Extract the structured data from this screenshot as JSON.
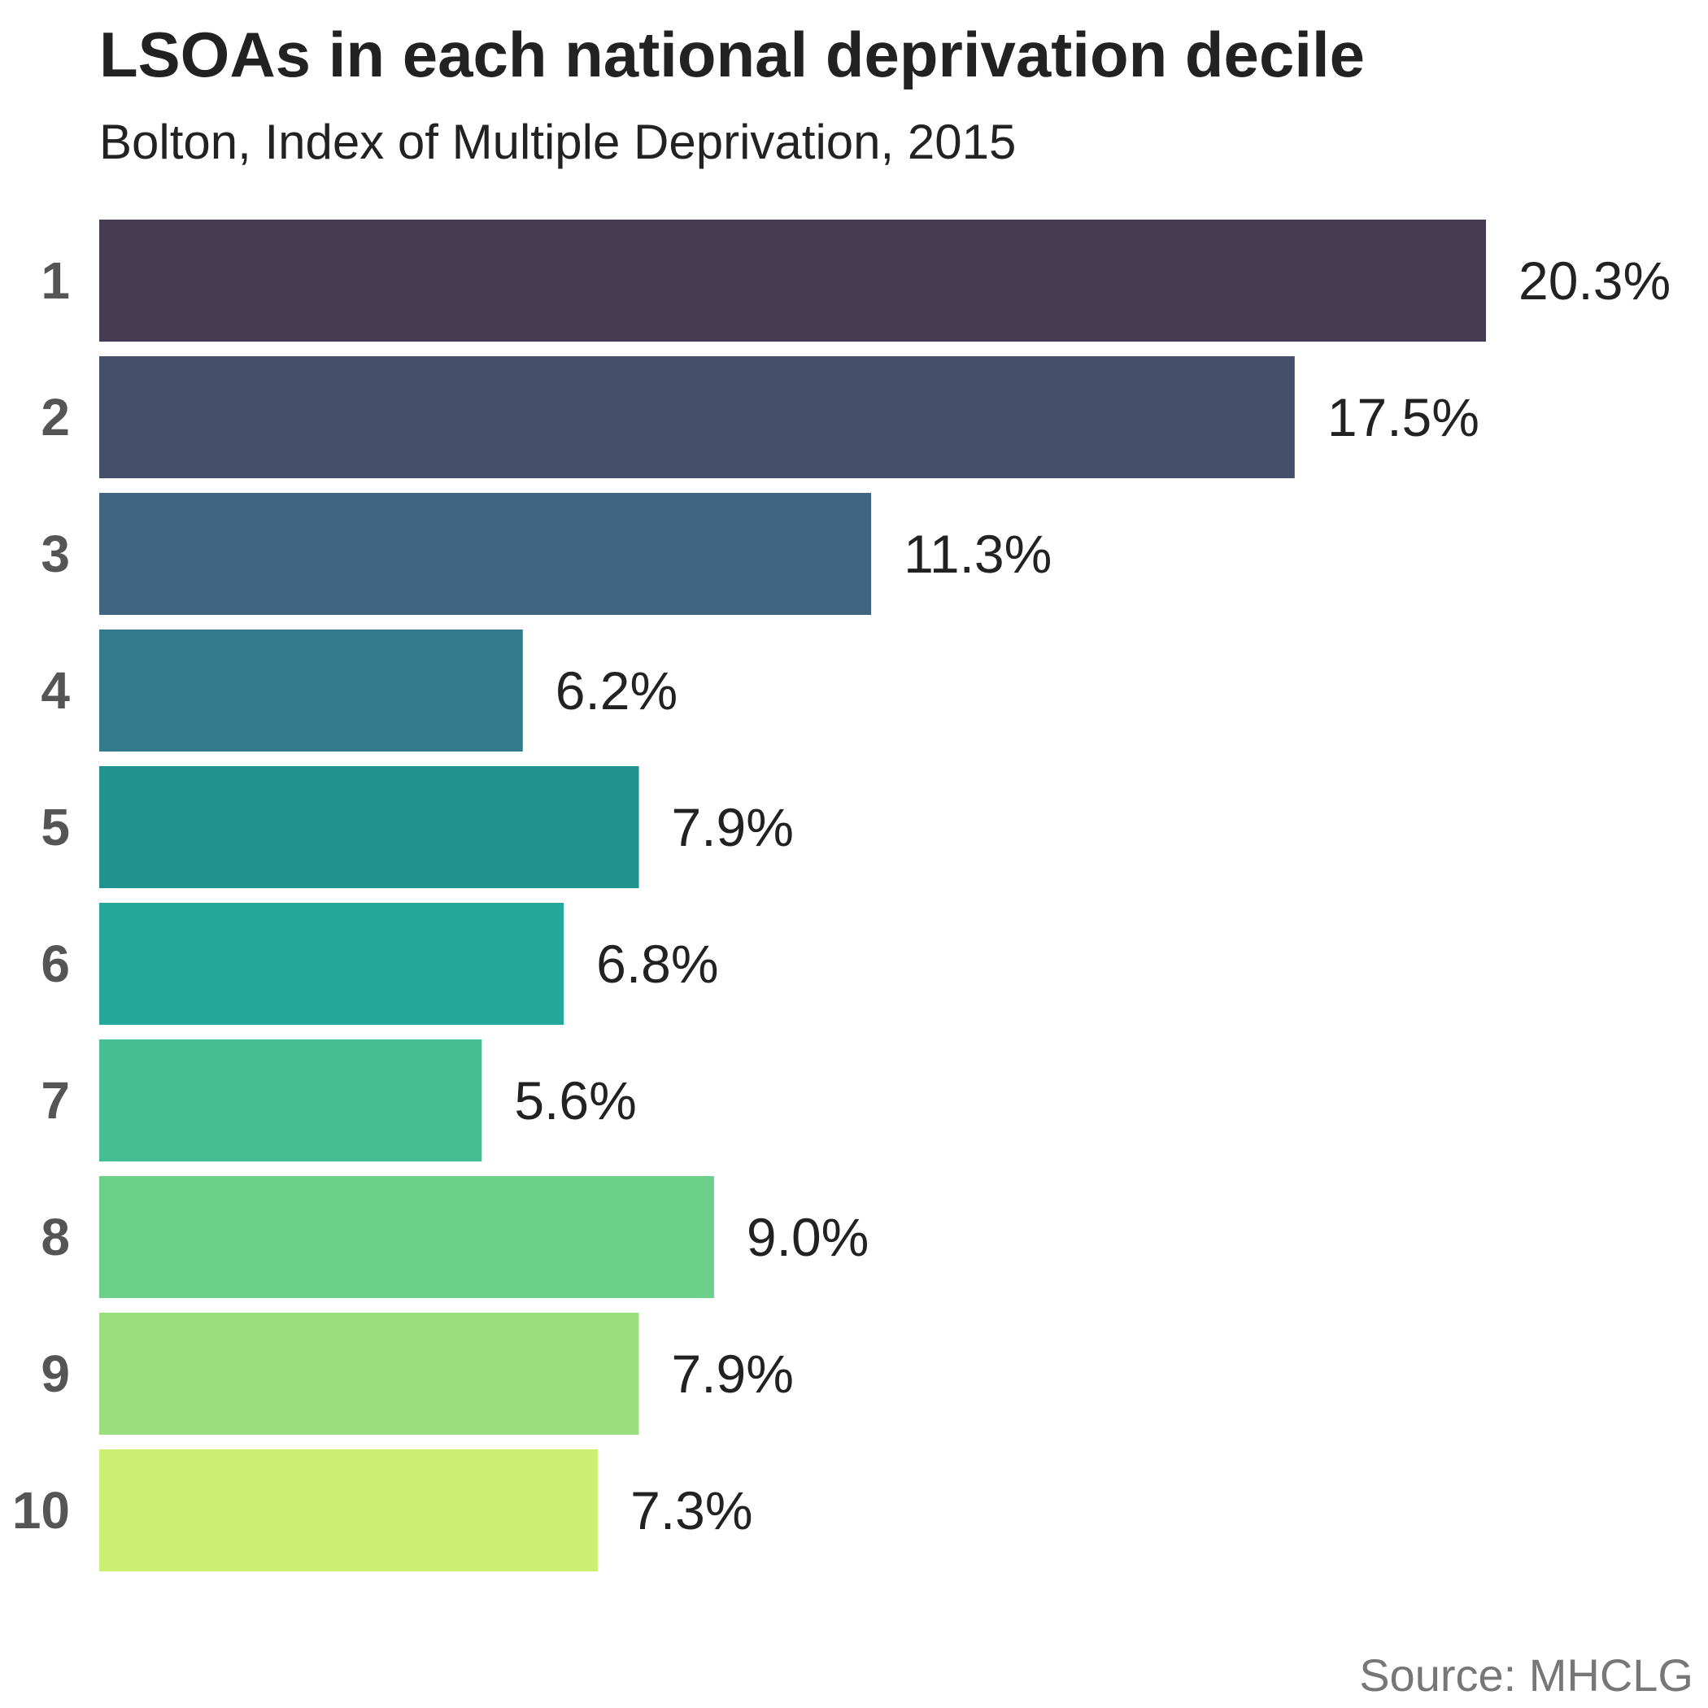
{
  "chart_data": {
    "type": "bar",
    "orientation": "horizontal",
    "title": "LSOAs in each national deprivation decile",
    "subtitle": "Bolton, Index of Multiple Deprivation, 2015",
    "source": "Source: MHCLG",
    "categories": [
      "1",
      "2",
      "3",
      "4",
      "5",
      "6",
      "7",
      "8",
      "9",
      "10"
    ],
    "values": [
      20.3,
      17.5,
      11.3,
      6.2,
      7.9,
      6.8,
      5.6,
      9.0,
      7.9,
      7.3
    ],
    "data_labels": [
      "20.3%",
      "17.5%",
      "11.3%",
      "6.2%",
      "7.9%",
      "6.8%",
      "5.6%",
      "9.0%",
      "7.9%",
      "7.3%"
    ],
    "colors": [
      "#453b52",
      "#454f69",
      "#3f6580",
      "#317b8a",
      "#22928f",
      "#25a89a",
      "#44be92",
      "#6bd18a",
      "#99e07d",
      "#cbef72"
    ],
    "xlim": [
      0,
      20.3
    ],
    "grid": false,
    "legend": "none"
  }
}
